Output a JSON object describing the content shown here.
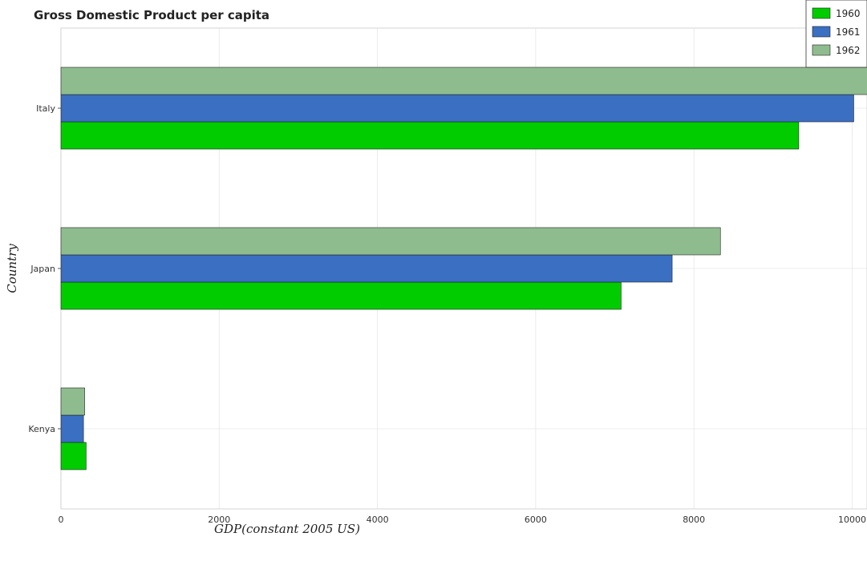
{
  "chart_data": {
    "type": "bar",
    "orientation": "horizontal",
    "title": "Gross Domestic Product per capita",
    "xlabel": "GDP(constant 2005 US)",
    "ylabel": "Country",
    "categories": [
      "Italy",
      "Japan",
      "Kenya"
    ],
    "series": [
      {
        "name": "1960",
        "color": "#00cc00",
        "values": [
          9325,
          7080,
          318
        ]
      },
      {
        "name": "1961",
        "color": "#3a6fc2",
        "values": [
          10020,
          7725,
          285
        ]
      },
      {
        "name": "1962",
        "color": "#8fbc8f",
        "values": [
          10575,
          8335,
          300
        ]
      }
    ],
    "xlim": [
      0,
      11000
    ],
    "xticks": [
      0,
      2000,
      4000,
      6000,
      8000,
      10000
    ],
    "xtick_labels": [
      "0",
      "2000",
      "4000",
      "6000",
      "8000",
      "10000"
    ],
    "grid": true,
    "legend_position": "top-right"
  }
}
